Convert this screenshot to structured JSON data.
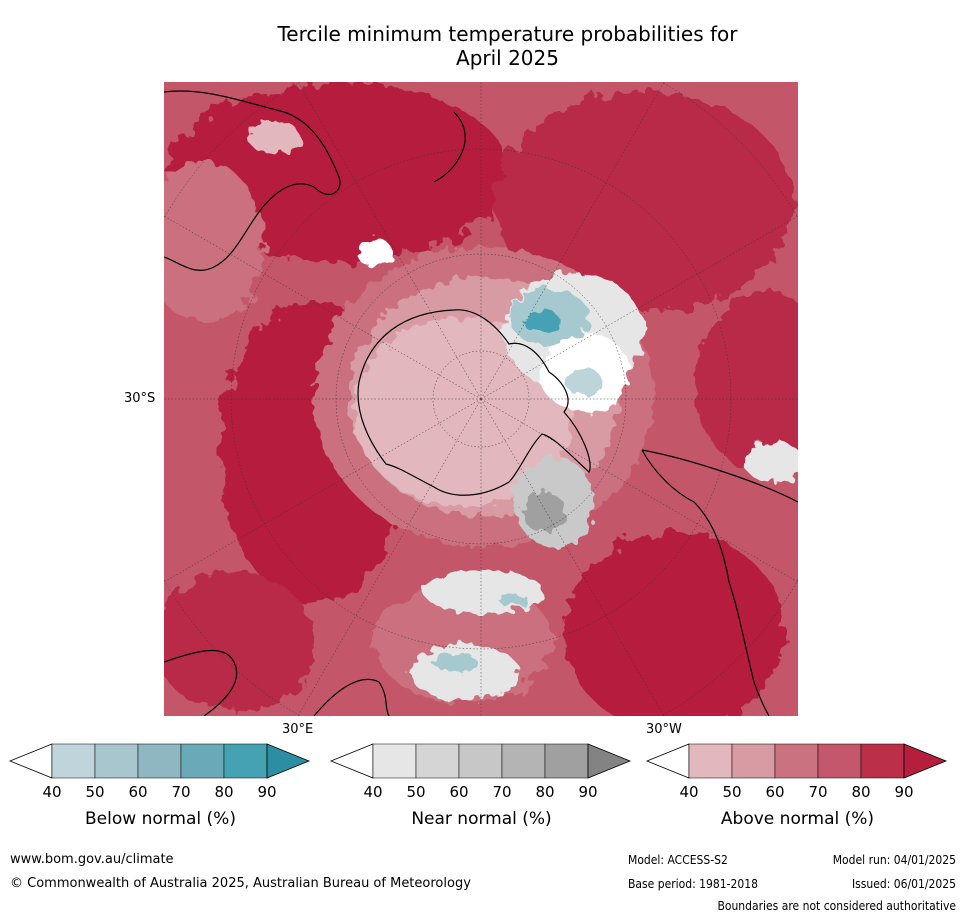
{
  "title_line1": "Tercile minimum temperature probabilities for",
  "title_line2": "April 2025",
  "map": {
    "projection": "south polar stereographic",
    "lat_label": "30°S",
    "lon_labels": {
      "east": "30°E",
      "west": "30°W"
    },
    "colors": {
      "above": [
        "#e2b7bd",
        "#d89aa3",
        "#ca707e",
        "#c4566a",
        "#b82c46",
        "#b51e3d"
      ],
      "near": [
        "#e6e6e6",
        "#d6d6d6",
        "#c9c9c9",
        "#b5b5b5",
        "#a0a0a0"
      ],
      "below": [
        "#bcd5db",
        "#a6c8cf",
        "#8db8c3",
        "#6aa9b7",
        "#44a1b4"
      ]
    }
  },
  "colorbars": [
    {
      "label": "Below normal (%)",
      "ticks": [
        "40",
        "50",
        "60",
        "70",
        "80",
        "90"
      ],
      "colors": [
        "#ffffff",
        "#bfd5db",
        "#a8c6cd",
        "#8fb7c2",
        "#6aaab8",
        "#45a2b3",
        "#2b8ea3"
      ]
    },
    {
      "label": "Near normal (%)",
      "ticks": [
        "40",
        "50",
        "60",
        "70",
        "80",
        "90"
      ],
      "colors": [
        "#ffffff",
        "#e6e6e6",
        "#d5d5d5",
        "#c7c7c7",
        "#b4b4b4",
        "#a0a0a0",
        "#838383"
      ]
    },
    {
      "label": "Above normal (%)",
      "ticks": [
        "40",
        "50",
        "60",
        "70",
        "80",
        "90"
      ],
      "colors": [
        "#ffffff",
        "#e2b7bd",
        "#d99ba3",
        "#ca7280",
        "#c4576b",
        "#bb2f49",
        "#b51f3d"
      ]
    }
  ],
  "footer": {
    "website": "www.bom.gov.au/climate",
    "copyright": "© Commonwealth of Australia 2025, Australian Bureau of Meteorology",
    "model": "Model: ACCESS-S2",
    "model_run": "Model run: 04/01/2025",
    "base_period": "Base period: 1981-2018",
    "issued": "Issued: 06/01/2025",
    "disclaimer": "Boundaries are not considered authoritative"
  }
}
